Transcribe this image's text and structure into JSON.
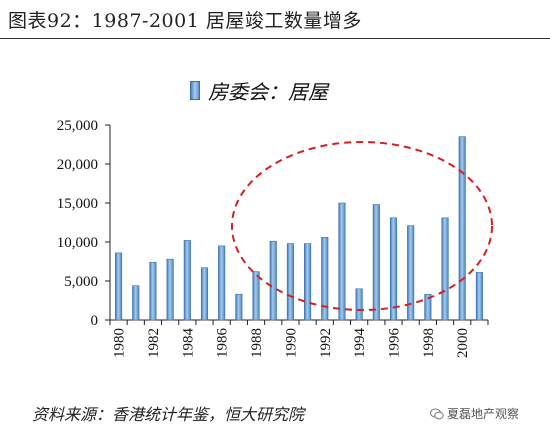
{
  "figure_title": "图表92：1987-2001 居屋竣工数量增多",
  "source_note": "资料来源：香港统计年鉴，恒大研究院",
  "watermark_text": "夏磊地产观察",
  "watermark_icon": "wechat-icon",
  "colors": {
    "bar": "#5b95cf",
    "bar_edge": "#3a6fa8",
    "highlight_circle": "#d42020"
  },
  "chart_data": {
    "type": "bar",
    "title": "",
    "xlabel": "",
    "ylabel": "",
    "ylim": [
      0,
      25000
    ],
    "yticks": [
      "0",
      "5,000",
      "10,000",
      "15,000",
      "20,000",
      "25,000"
    ],
    "grid": false,
    "legend_position": "top",
    "categories": [
      "1980",
      "1981",
      "1982",
      "1983",
      "1984",
      "1985",
      "1986",
      "1987",
      "1988",
      "1989",
      "1990",
      "1991",
      "1992",
      "1993",
      "1994",
      "1995",
      "1996",
      "1997",
      "1998",
      "1999",
      "2000",
      "2001"
    ],
    "xtick_labels": [
      "1980",
      "1982",
      "1984",
      "1986",
      "1988",
      "1990",
      "1992",
      "1994",
      "1996",
      "1998",
      "2000"
    ],
    "series": [
      {
        "name": "房委会：居屋",
        "values": [
          8600,
          4400,
          7400,
          7800,
          10200,
          6700,
          9500,
          3300,
          6200,
          10100,
          9800,
          9800,
          10600,
          15000,
          4000,
          14800,
          13100,
          12100,
          3300,
          13100,
          23500,
          6100
        ]
      }
    ]
  }
}
